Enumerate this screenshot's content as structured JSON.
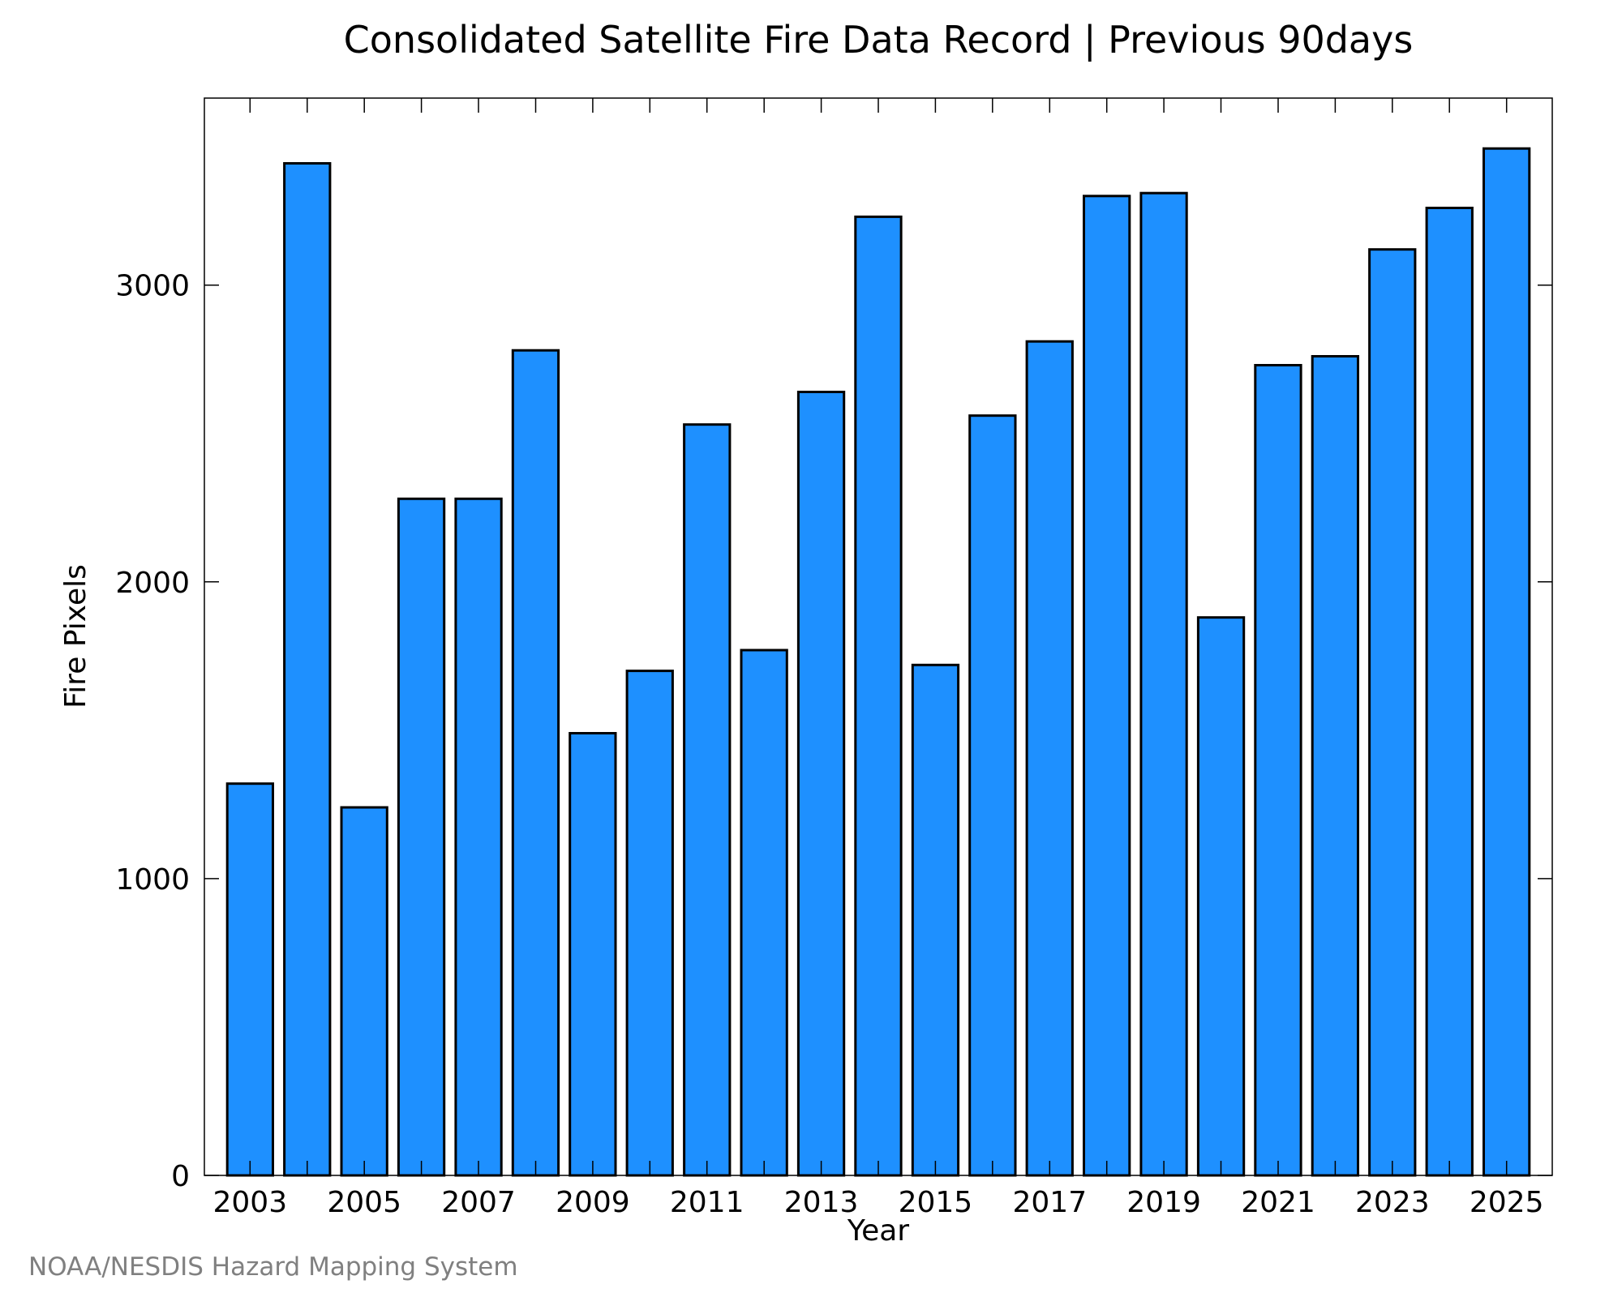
{
  "credit": "NOAA/NESDIS Hazard Mapping System",
  "colors": {
    "bar_fill": "#1e90ff",
    "bar_stroke": "#000000",
    "frame": "#000000",
    "credit_text": "#808080",
    "background": "#ffffff"
  },
  "chart_data": {
    "type": "bar",
    "title": "Consolidated Satellite Fire Data Record | Previous 90days",
    "xlabel": "Year",
    "ylabel": "Fire Pixels",
    "categories": [
      "2003",
      "2004",
      "2005",
      "2006",
      "2007",
      "2008",
      "2009",
      "2010",
      "2011",
      "2012",
      "2013",
      "2014",
      "2015",
      "2016",
      "2017",
      "2018",
      "2019",
      "2020",
      "2021",
      "2022",
      "2023",
      "2024",
      "2025"
    ],
    "values": [
      1320,
      3410,
      1240,
      2280,
      2280,
      2780,
      1490,
      1700,
      2530,
      1770,
      2640,
      3230,
      1720,
      2560,
      2810,
      3300,
      3310,
      1880,
      2730,
      2760,
      3120,
      3260,
      3460
    ],
    "x_tick_labels": [
      "2003",
      "2005",
      "2007",
      "2009",
      "2011",
      "2013",
      "2015",
      "2017",
      "2019",
      "2021",
      "2023",
      "2025"
    ],
    "y_ticks": [
      0,
      1000,
      2000,
      3000
    ],
    "ylim": [
      0,
      3630
    ],
    "grid": false,
    "legend": "none"
  }
}
